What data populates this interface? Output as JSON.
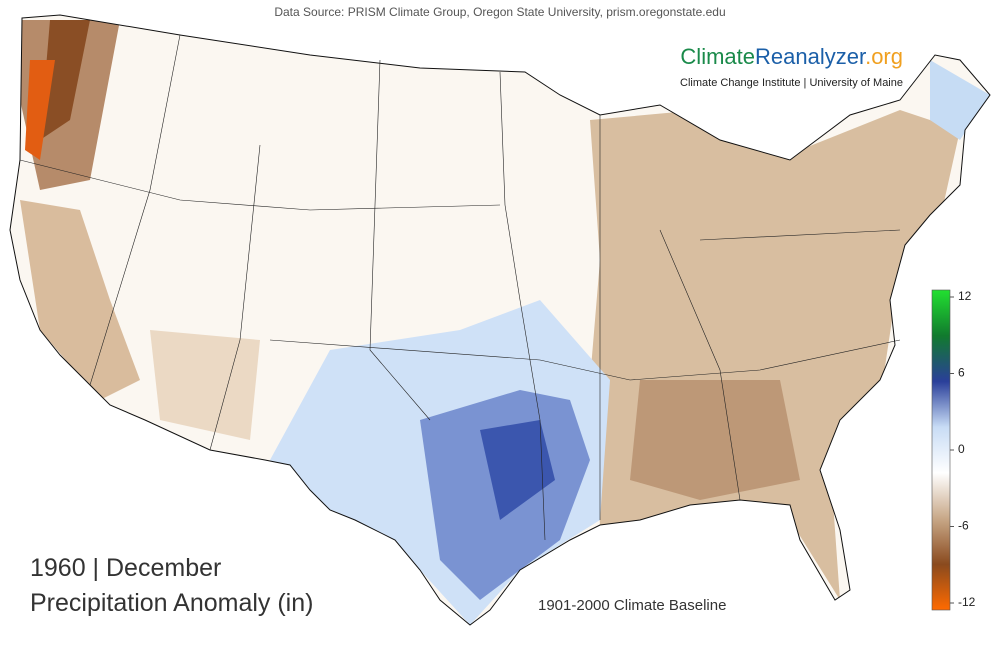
{
  "source": "Data Source: PRISM Climate Group, Oregon State University, prism.oregonstate.edu",
  "brand": {
    "parts": [
      "Climate",
      "Reanalyzer",
      ".org"
    ],
    "subtitle": "Climate Change Institute | University of Maine"
  },
  "title": {
    "line1": "1960 | December",
    "line2": "Precipitation Anomaly (in)"
  },
  "baseline": "1901-2000 Climate Baseline",
  "colorbar": {
    "lim": [
      -12,
      12
    ],
    "ticks": [
      12,
      6,
      0,
      -6,
      -12
    ],
    "colors": [
      "#ff6a00",
      "#8a4a1e",
      "#c8a888",
      "#ffffff",
      "#c8dcf5",
      "#2a3f9a",
      "#117a2e",
      "#22e030"
    ]
  }
}
